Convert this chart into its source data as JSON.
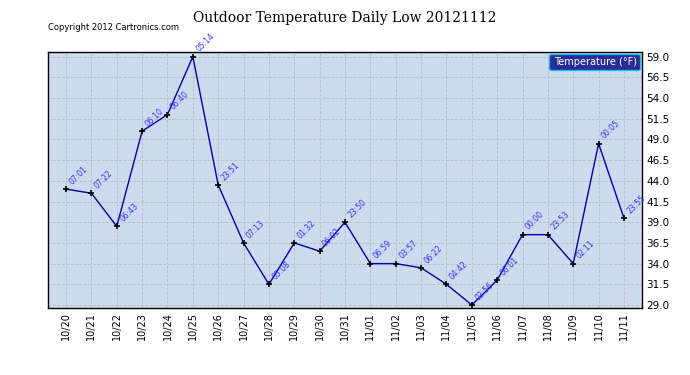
{
  "title": "Outdoor Temperature Daily Low 20121112",
  "copyright": "Copyright 2012 Cartronics.com",
  "legend_label": "Temperature (°F)",
  "x_labels": [
    "10/20",
    "10/21",
    "10/22",
    "10/23",
    "10/24",
    "10/25",
    "10/26",
    "10/27",
    "10/28",
    "10/29",
    "10/30",
    "10/31",
    "11/01",
    "11/02",
    "11/03",
    "11/04",
    "11/05",
    "11/06",
    "11/07",
    "11/08",
    "11/09",
    "11/10",
    "11/11"
  ],
  "y_values": [
    43.0,
    42.5,
    38.5,
    50.0,
    52.0,
    59.0,
    43.5,
    36.5,
    31.5,
    36.5,
    35.5,
    39.0,
    34.0,
    34.0,
    33.5,
    31.5,
    29.0,
    32.0,
    37.5,
    37.5,
    34.0,
    48.5,
    39.5
  ],
  "point_labels": [
    "07:01",
    "07:22",
    "06:43",
    "06:10",
    "06:40",
    "05:14",
    "23:51",
    "07:13",
    "05:08",
    "01:32",
    "06:02",
    "23:50",
    "06:59",
    "03:57",
    "06:22",
    "04:42",
    "02:56",
    "06:01",
    "00:00",
    "23:53",
    "02:11",
    "00:05",
    "23:55"
  ],
  "ylim": [
    29.0,
    59.0
  ],
  "yticks": [
    29.0,
    31.5,
    34.0,
    36.5,
    39.0,
    41.5,
    44.0,
    46.5,
    49.0,
    51.5,
    54.0,
    56.5,
    59.0
  ],
  "line_color": "#0000aa",
  "marker_color": "#000000",
  "label_color": "#3333ff",
  "bg_color": "#ffffff",
  "plot_bg_color": "#ccdcee",
  "grid_color": "#bbbbbb",
  "title_color": "#000000",
  "legend_bg": "#000080",
  "legend_fg": "#ffffff"
}
